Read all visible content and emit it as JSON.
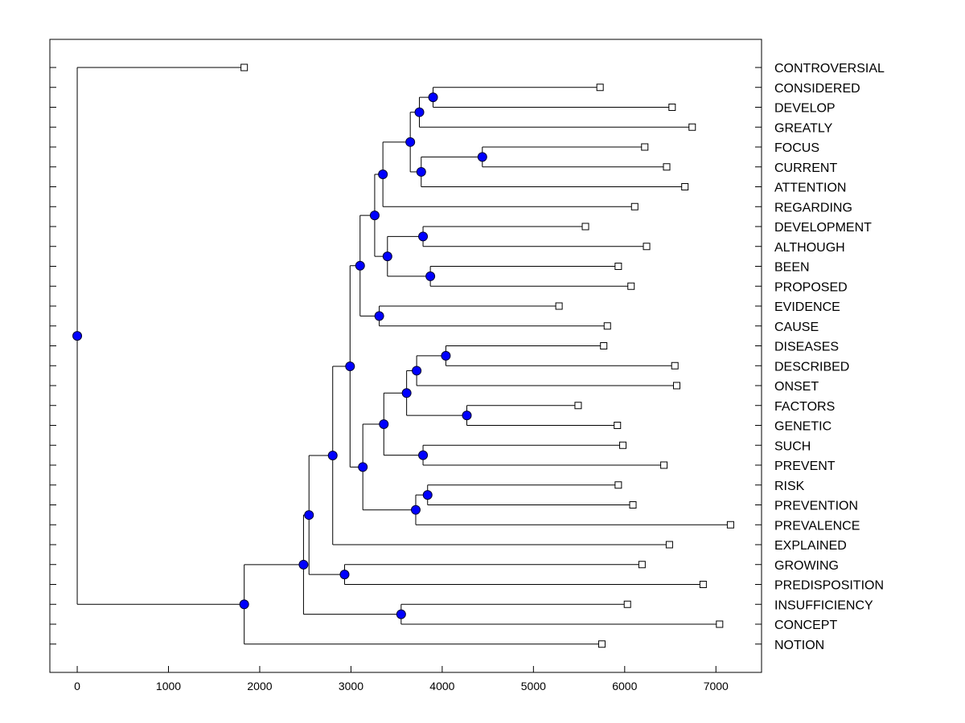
{
  "chart_data": {
    "type": "dendrogram",
    "orientation": "horizontal",
    "xlim": [
      -300,
      7500
    ],
    "xticks": [
      0,
      1000,
      2000,
      3000,
      4000,
      5000,
      6000,
      7000
    ],
    "colors": {
      "node": "#0000ff",
      "leaf": "#ffffff",
      "line": "#000000"
    },
    "leaves": [
      {
        "id": "controversial",
        "label": "CONTROVERSIAL",
        "value": 1830
      },
      {
        "id": "considered",
        "label": "CONSIDERED",
        "value": 5730
      },
      {
        "id": "develop",
        "label": "DEVELOP",
        "value": 6520
      },
      {
        "id": "greatly",
        "label": "GREATLY",
        "value": 6740
      },
      {
        "id": "focus",
        "label": "FOCUS",
        "value": 6220
      },
      {
        "id": "current",
        "label": "CURRENT",
        "value": 6460
      },
      {
        "id": "attention",
        "label": "ATTENTION",
        "value": 6660
      },
      {
        "id": "regarding",
        "label": "REGARDING",
        "value": 6110
      },
      {
        "id": "development",
        "label": "DEVELOPMENT",
        "value": 5570
      },
      {
        "id": "although",
        "label": "ALTHOUGH",
        "value": 6240
      },
      {
        "id": "been",
        "label": "BEEN",
        "value": 5930
      },
      {
        "id": "proposed",
        "label": "PROPOSED",
        "value": 6070
      },
      {
        "id": "evidence",
        "label": "EVIDENCE",
        "value": 5280
      },
      {
        "id": "cause",
        "label": "CAUSE",
        "value": 5810
      },
      {
        "id": "diseases",
        "label": "DISEASES",
        "value": 5770
      },
      {
        "id": "described",
        "label": "DESCRIBED",
        "value": 6550
      },
      {
        "id": "onset",
        "label": "ONSET",
        "value": 6570
      },
      {
        "id": "factors",
        "label": "FACTORS",
        "value": 5490
      },
      {
        "id": "genetic",
        "label": "GENETIC",
        "value": 5920
      },
      {
        "id": "such",
        "label": "SUCH",
        "value": 5980
      },
      {
        "id": "prevent",
        "label": "PREVENT",
        "value": 6430
      },
      {
        "id": "risk",
        "label": "RISK",
        "value": 5930
      },
      {
        "id": "prevention",
        "label": "PREVENTION",
        "value": 6090
      },
      {
        "id": "prevalence",
        "label": "PREVALENCE",
        "value": 7160
      },
      {
        "id": "explained",
        "label": "EXPLAINED",
        "value": 6490
      },
      {
        "id": "growing",
        "label": "GROWING",
        "value": 6190
      },
      {
        "id": "predisposition",
        "label": "PREDISPOSITION",
        "value": 6860
      },
      {
        "id": "insufficiency",
        "label": "INSUFFICIENCY",
        "value": 6030
      },
      {
        "id": "concept",
        "label": "CONCEPT",
        "value": 7040
      },
      {
        "id": "notion",
        "label": "NOTION",
        "value": 5750
      }
    ],
    "nodes": [
      {
        "id": "n1",
        "value": 3900,
        "children": [
          "considered",
          "develop"
        ]
      },
      {
        "id": "n2",
        "value": 3750,
        "children": [
          "n1",
          "greatly"
        ]
      },
      {
        "id": "n3",
        "value": 4440,
        "children": [
          "focus",
          "current"
        ]
      },
      {
        "id": "n4",
        "value": 3770,
        "children": [
          "n3",
          "attention"
        ]
      },
      {
        "id": "n5",
        "value": 3650,
        "children": [
          "n2",
          "n4"
        ]
      },
      {
        "id": "n6",
        "value": 3350,
        "children": [
          "n5",
          "regarding"
        ]
      },
      {
        "id": "n7",
        "value": 3790,
        "children": [
          "development",
          "although"
        ]
      },
      {
        "id": "n8",
        "value": 3870,
        "children": [
          "been",
          "proposed"
        ]
      },
      {
        "id": "n9",
        "value": 3400,
        "children": [
          "n7",
          "n8"
        ]
      },
      {
        "id": "n10",
        "value": 3260,
        "children": [
          "n6",
          "n9"
        ]
      },
      {
        "id": "n11",
        "value": 3310,
        "children": [
          "evidence",
          "cause"
        ]
      },
      {
        "id": "n12",
        "value": 3100,
        "children": [
          "n10",
          "n11"
        ]
      },
      {
        "id": "n13",
        "value": 4040,
        "children": [
          "diseases",
          "described"
        ]
      },
      {
        "id": "n14",
        "value": 3720,
        "children": [
          "n13",
          "onset"
        ]
      },
      {
        "id": "n15",
        "value": 4270,
        "children": [
          "factors",
          "genetic"
        ]
      },
      {
        "id": "n16",
        "value": 3610,
        "children": [
          "n14",
          "n15"
        ]
      },
      {
        "id": "n17",
        "value": 3790,
        "children": [
          "such",
          "prevent"
        ]
      },
      {
        "id": "n18",
        "value": 3360,
        "children": [
          "n16",
          "n17"
        ]
      },
      {
        "id": "n19",
        "value": 3840,
        "children": [
          "risk",
          "prevention"
        ]
      },
      {
        "id": "n20",
        "value": 3710,
        "children": [
          "n19",
          "prevalence"
        ]
      },
      {
        "id": "n21",
        "value": 3130,
        "children": [
          "n18",
          "n20"
        ]
      },
      {
        "id": "n22",
        "value": 2990,
        "children": [
          "n12",
          "n21"
        ]
      },
      {
        "id": "n23",
        "value": 2800,
        "children": [
          "n22",
          "explained"
        ]
      },
      {
        "id": "n24",
        "value": 2930,
        "children": [
          "growing",
          "predisposition"
        ]
      },
      {
        "id": "n25",
        "value": 2540,
        "children": [
          "n23",
          "n24"
        ]
      },
      {
        "id": "n26",
        "value": 3550,
        "children": [
          "insufficiency",
          "concept"
        ]
      },
      {
        "id": "n27",
        "value": 2480,
        "children": [
          "n25",
          "n26"
        ]
      },
      {
        "id": "n28",
        "value": 1830,
        "children": [
          "n27",
          "notion"
        ]
      },
      {
        "id": "root",
        "value": 0,
        "children": [
          "controversial",
          "n28"
        ]
      }
    ]
  }
}
